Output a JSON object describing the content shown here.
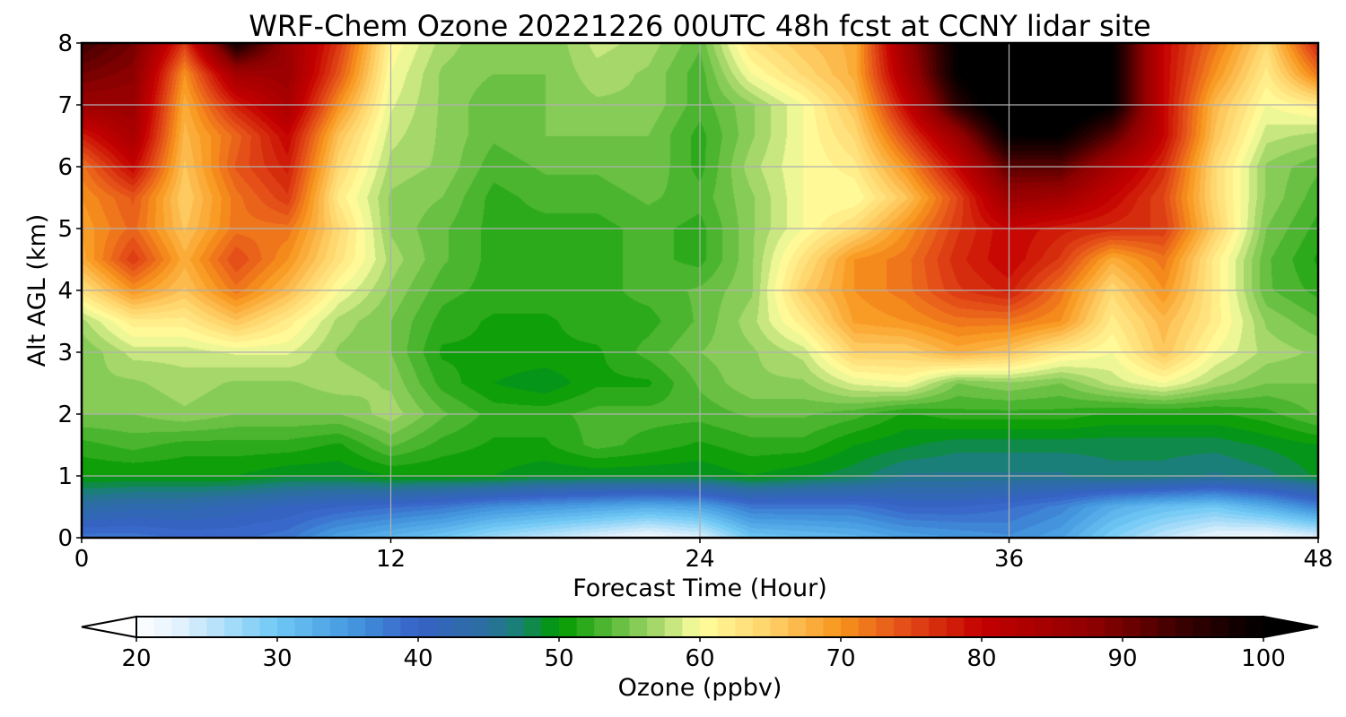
{
  "chart_data": {
    "type": "heatmap",
    "title": "WRF-Chem Ozone  20221226 00UTC 48h fcst at CCNY lidar site",
    "xlabel": "Forecast Time (Hour)",
    "ylabel": "Alt AGL (km)",
    "xlim": [
      0,
      48
    ],
    "ylim": [
      0,
      8
    ],
    "x_ticks": [
      "0",
      "12",
      "24",
      "36",
      "48"
    ],
    "y_ticks": [
      "0",
      "1",
      "2",
      "3",
      "4",
      "5",
      "6",
      "7",
      "8"
    ],
    "grid": true,
    "x": [
      0,
      2,
      4,
      6,
      8,
      10,
      12,
      14,
      16,
      18,
      20,
      22,
      24,
      26,
      28,
      30,
      32,
      34,
      36,
      38,
      40,
      42,
      44,
      46,
      48
    ],
    "y": [
      0,
      0.5,
      1,
      1.5,
      2,
      2.5,
      3,
      3.5,
      4,
      4.5,
      5,
      5.5,
      6,
      6.5,
      7,
      7.5,
      8
    ],
    "values": [
      [
        38,
        38,
        39,
        39,
        38,
        34,
        32,
        30,
        27,
        25,
        23,
        21,
        23,
        30,
        31,
        32,
        34,
        35,
        36,
        34,
        29,
        25,
        22,
        21,
        23
      ],
      [
        44,
        43,
        43,
        42,
        41,
        40,
        39,
        38,
        36,
        35,
        34,
        33,
        34,
        38,
        38,
        38,
        40,
        40,
        39,
        37,
        33,
        31,
        30,
        33,
        37
      ],
      [
        50,
        50,
        50,
        50,
        49,
        49,
        50,
        50,
        50,
        49,
        49,
        49,
        49,
        50,
        49,
        48,
        46,
        46,
        46,
        46,
        47,
        47,
        46,
        47,
        49
      ],
      [
        52,
        53,
        52,
        52,
        52,
        51,
        54,
        52,
        51,
        51,
        53,
        52,
        51,
        52,
        52,
        50,
        49,
        48,
        48,
        48,
        48,
        48,
        48,
        49,
        50
      ],
      [
        55,
        55,
        56,
        55,
        55,
        55,
        57,
        54,
        52,
        52,
        53,
        53,
        53,
        54,
        54,
        53,
        51,
        52,
        52,
        52,
        51,
        51,
        51,
        52,
        54
      ],
      [
        56,
        56,
        57,
        56,
        56,
        57,
        56,
        52,
        50,
        49,
        51,
        51,
        54,
        56,
        56,
        59,
        60,
        55,
        56,
        55,
        58,
        60,
        57,
        55,
        55
      ],
      [
        55,
        58,
        58,
        59,
        59,
        56,
        55,
        51,
        51,
        51,
        51,
        53,
        55,
        56,
        58,
        65,
        65,
        68,
        66,
        62,
        60,
        66,
        60,
        57,
        56
      ],
      [
        57,
        62,
        62,
        66,
        62,
        57,
        55,
        52,
        51,
        51,
        52,
        52,
        54,
        57,
        62,
        69,
        70,
        72,
        72,
        70,
        62,
        67,
        62,
        56,
        54
      ],
      [
        63,
        70,
        66,
        72,
        67,
        60,
        56,
        53,
        52,
        52,
        52,
        53,
        54,
        56,
        65,
        70,
        72,
        76,
        78,
        72,
        64,
        70,
        62,
        54,
        52
      ],
      [
        68,
        76,
        68,
        75,
        70,
        63,
        57,
        54,
        52,
        52,
        52,
        53,
        52,
        56,
        63,
        70,
        72,
        77,
        80,
        76,
        68,
        72,
        62,
        54,
        51
      ],
      [
        69,
        73,
        66,
        72,
        72,
        64,
        56,
        54,
        52,
        52,
        52,
        53,
        52,
        56,
        60,
        64,
        70,
        76,
        80,
        78,
        77,
        76,
        65,
        55,
        52
      ],
      [
        70,
        74,
        65,
        72,
        76,
        62,
        56,
        55,
        52,
        53,
        53,
        54,
        53,
        56,
        60,
        60,
        66,
        75,
        86,
        85,
        80,
        75,
        64,
        56,
        53
      ],
      [
        72,
        80,
        66,
        74,
        78,
        64,
        57,
        56,
        53,
        54,
        54,
        55,
        52,
        57,
        60,
        62,
        70,
        80,
        92,
        92,
        84,
        77,
        64,
        56,
        54
      ],
      [
        78,
        84,
        67,
        73,
        80,
        66,
        58,
        56,
        54,
        55,
        55,
        55,
        52,
        56,
        60,
        64,
        75,
        86,
        100,
        100,
        92,
        80,
        66,
        58,
        57
      ],
      [
        86,
        86,
        68,
        78,
        84,
        70,
        59,
        56,
        54,
        55,
        56,
        56,
        53,
        56,
        60,
        66,
        80,
        96,
        105,
        105,
        100,
        80,
        67,
        60,
        62
      ],
      [
        90,
        88,
        70,
        85,
        86,
        74,
        60,
        56,
        55,
        55,
        57,
        56,
        53,
        60,
        64,
        68,
        84,
        100,
        105,
        105,
        100,
        80,
        70,
        62,
        72
      ],
      [
        94,
        90,
        76,
        98,
        86,
        76,
        61,
        57,
        55,
        55,
        58,
        57,
        54,
        63,
        66,
        68,
        86,
        100,
        105,
        105,
        100,
        80,
        72,
        64,
        78
      ]
    ],
    "colorbar": {
      "label": "Ozone  (ppbv)",
      "min": 20,
      "max": 100,
      "ticks": [
        "20",
        "30",
        "40",
        "50",
        "60",
        "70",
        "80",
        "90",
        "100"
      ],
      "stops": [
        {
          "v": 20,
          "c": "#ffffff"
        },
        {
          "v": 23,
          "c": "#e3f2fd"
        },
        {
          "v": 30,
          "c": "#6ec8f5"
        },
        {
          "v": 35,
          "c": "#459ae0"
        },
        {
          "v": 40,
          "c": "#3661c6"
        },
        {
          "v": 45,
          "c": "#2a6f9e"
        },
        {
          "v": 47,
          "c": "#1a8077"
        },
        {
          "v": 50,
          "c": "#009a00"
        },
        {
          "v": 54,
          "c": "#60bd3c"
        },
        {
          "v": 57,
          "c": "#a8d86d"
        },
        {
          "v": 60,
          "c": "#ffff9f"
        },
        {
          "v": 65,
          "c": "#ffd168"
        },
        {
          "v": 70,
          "c": "#f8941c"
        },
        {
          "v": 74,
          "c": "#e6551a"
        },
        {
          "v": 80,
          "c": "#c40000"
        },
        {
          "v": 88,
          "c": "#8d0000"
        },
        {
          "v": 95,
          "c": "#300000"
        },
        {
          "v": 100,
          "c": "#000000"
        }
      ]
    }
  }
}
